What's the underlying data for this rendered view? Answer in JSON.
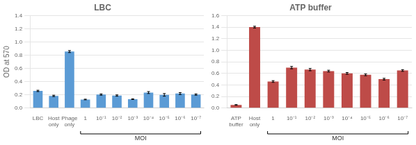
{
  "chart_data": [
    {
      "type": "bar",
      "title": "LBC",
      "ylabel": "OD at 570",
      "categories": [
        "LBC",
        "Host\nonly",
        "Phage\nonly",
        "1",
        "10⁻¹",
        "10⁻²",
        "10⁻³",
        "10⁻⁴",
        "10⁻⁵",
        "10⁻⁶",
        "10⁻⁷"
      ],
      "values": [
        0.26,
        0.185,
        0.855,
        0.13,
        0.205,
        0.19,
        0.135,
        0.235,
        0.2,
        0.22,
        0.205
      ],
      "errors": [
        0.01,
        0.01,
        0.015,
        0.005,
        0.01,
        0.01,
        0.005,
        0.015,
        0.02,
        0.015,
        0.01
      ],
      "color": "#5b9bd5",
      "ylim": [
        0,
        1.4
      ],
      "yticks": [
        {
          "value": 0,
          "label": "0.0"
        },
        0.2,
        0.4,
        0.6,
        0.8,
        {
          "value": 1,
          "label": "1.0"
        },
        1.2,
        1.4
      ],
      "grid": true,
      "annotations": [
        {
          "text": "MOI",
          "start": "1",
          "end": "10⁻⁷"
        }
      ]
    },
    {
      "type": "bar",
      "title": "ATP buffer",
      "categories": [
        "ATP\nbuffer",
        "Host\nonly",
        "1",
        "10⁻¹",
        "10⁻²",
        "10⁻³",
        "10⁻⁴",
        "10⁻⁵",
        "10⁻⁶",
        "10⁻⁷"
      ],
      "values": [
        0.055,
        1.4,
        0.46,
        0.7,
        0.665,
        0.64,
        0.6,
        0.575,
        0.5,
        0.65
      ],
      "errors": [
        0.005,
        0.015,
        0.015,
        0.02,
        0.02,
        0.015,
        0.015,
        0.015,
        0.015,
        0.015
      ],
      "color": "#be4b48",
      "ylim": [
        0,
        1.6
      ],
      "yticks": [
        {
          "value": 0,
          "label": "0.0"
        },
        0.2,
        0.4,
        0.6,
        0.8,
        {
          "value": 1,
          "label": "1.0"
        },
        1.2,
        1.4,
        1.6
      ],
      "grid": true,
      "annotations": [
        {
          "text": "MOI",
          "start": "1",
          "end": "10⁻⁷"
        }
      ]
    }
  ]
}
